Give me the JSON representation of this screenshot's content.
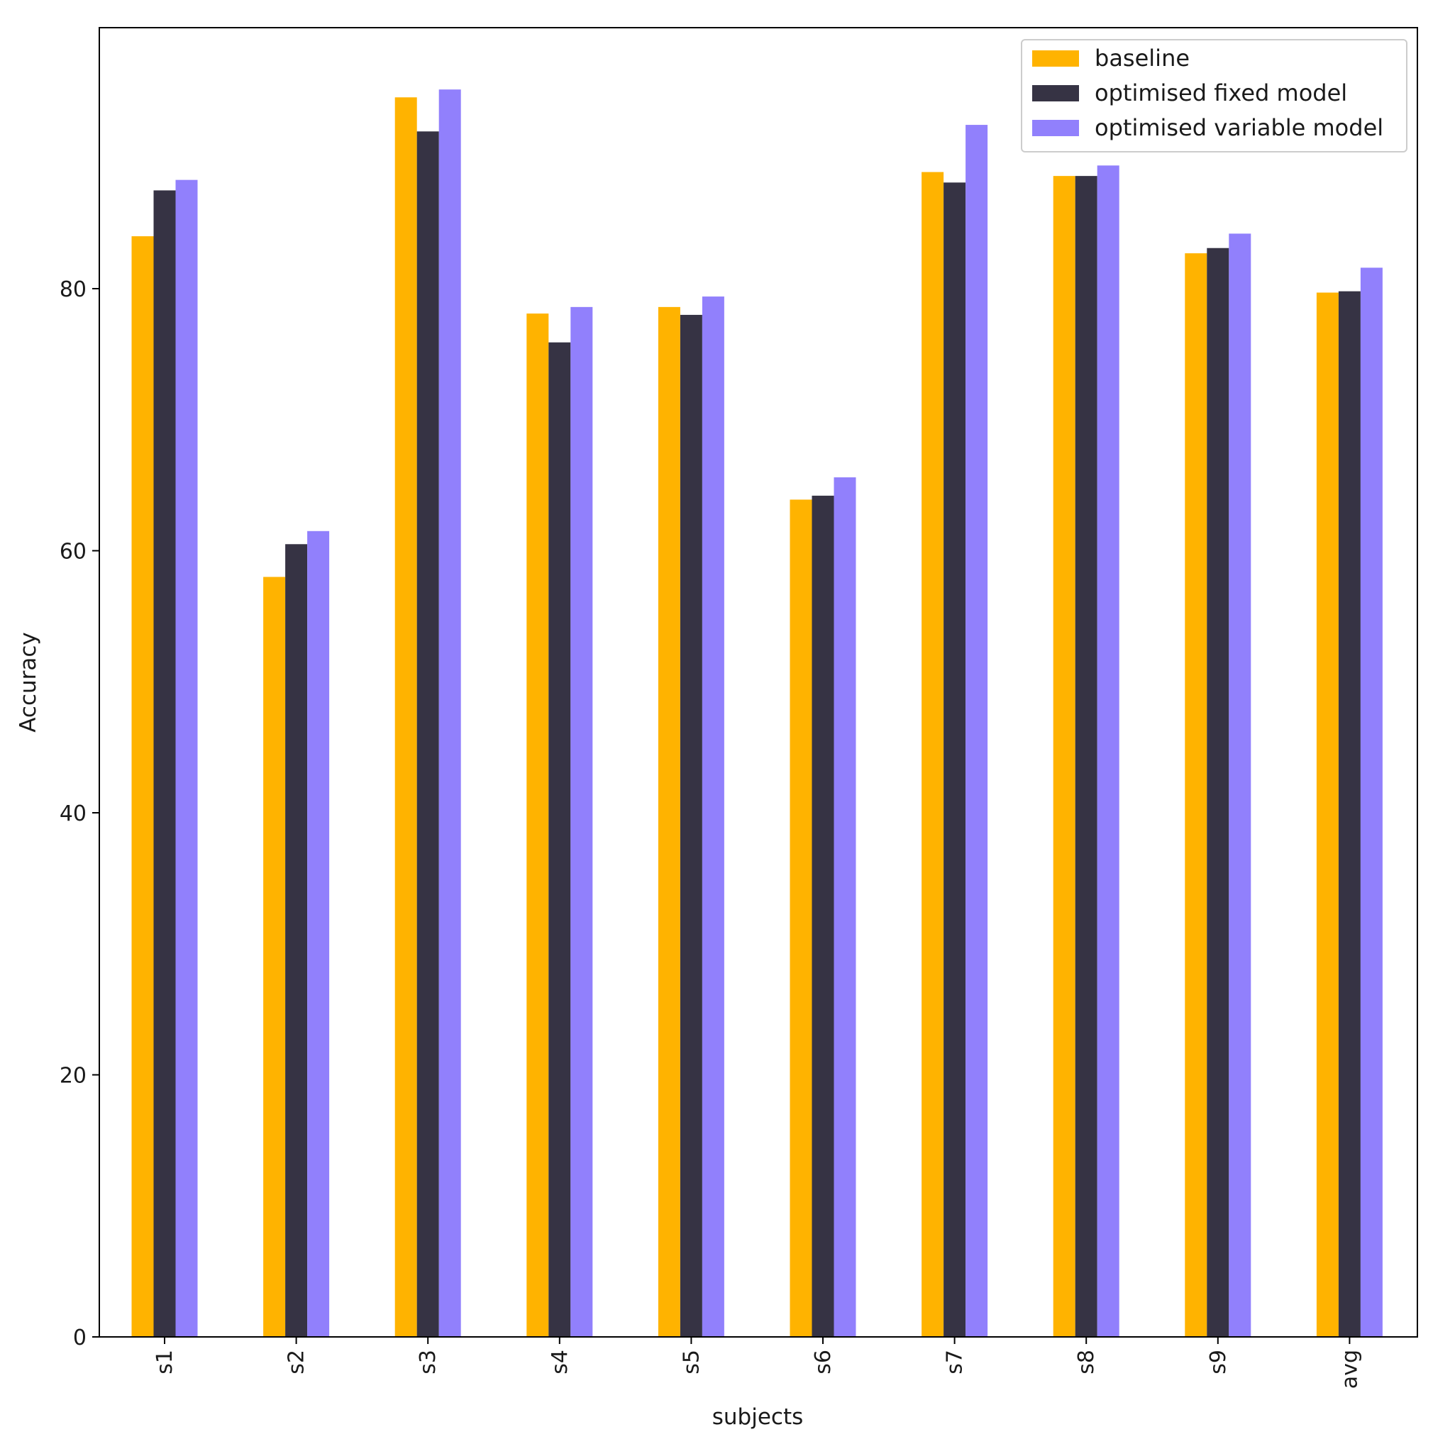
{
  "chart_data": {
    "type": "bar",
    "title": "",
    "xlabel": "subjects",
    "ylabel": "Accuracy",
    "ylim": [
      0,
      100
    ],
    "yticks": [
      0,
      20,
      40,
      60,
      80
    ],
    "grid": false,
    "legend_position": "top-right",
    "categories": [
      "s1",
      "s2",
      "s3",
      "s4",
      "s5",
      "s6",
      "s7",
      "s8",
      "s9",
      "avg"
    ],
    "series": [
      {
        "name": "baseline",
        "color": "#ffb300",
        "values": [
          84.0,
          58.0,
          94.6,
          78.1,
          78.6,
          63.9,
          88.9,
          88.6,
          82.7,
          79.7
        ]
      },
      {
        "name": "optimised fixed model",
        "color": "#363344",
        "values": [
          87.5,
          60.5,
          92.0,
          75.9,
          78.0,
          64.2,
          88.1,
          88.6,
          83.1,
          79.8
        ]
      },
      {
        "name": "optimised variable model",
        "color": "#9180fc",
        "values": [
          88.3,
          61.5,
          95.2,
          78.6,
          79.4,
          65.6,
          92.5,
          89.4,
          84.2,
          81.6
        ]
      }
    ]
  }
}
